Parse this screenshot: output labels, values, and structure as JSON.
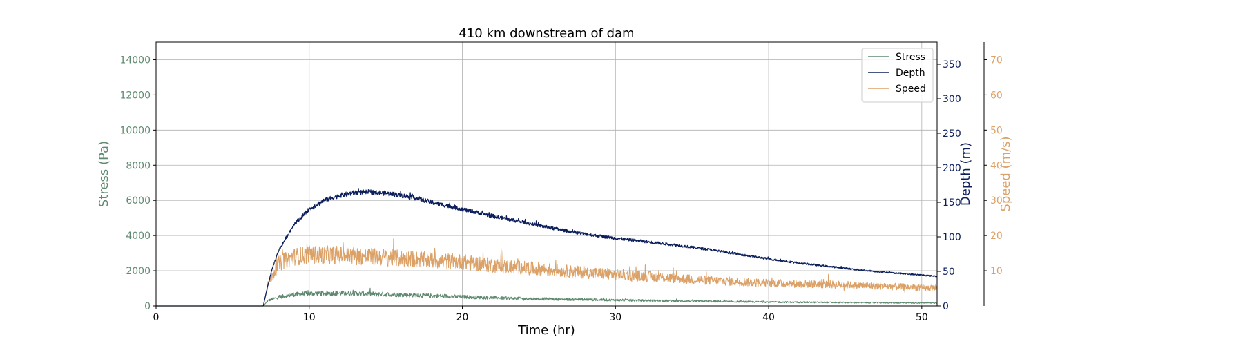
{
  "chart_data": {
    "type": "line",
    "title": "410 km downstream of dam",
    "xlabel": "Time (hr)",
    "xlim": [
      0,
      51
    ],
    "x_ticks": [
      0,
      10,
      20,
      30,
      40,
      50
    ],
    "grid": true,
    "legend_position": "top-right",
    "axes": {
      "stress": {
        "label": "Stress (Pa)",
        "side": "left",
        "color": "#5f8a70",
        "ylim": [
          0,
          15000
        ],
        "ticks": [
          0,
          2000,
          4000,
          6000,
          8000,
          10000,
          12000,
          14000
        ]
      },
      "depth": {
        "label": "Depth (m)",
        "side": "right",
        "color": "#0c1f5c",
        "ylim": [
          0,
          382
        ],
        "ticks": [
          0,
          50,
          100,
          150,
          200,
          250,
          300,
          350
        ]
      },
      "speed": {
        "label": "Speed (m/s)",
        "side": "right-outer",
        "color": "#dba167",
        "ylim": [
          0,
          75
        ],
        "ticks": [
          10,
          20,
          30,
          40,
          50,
          60,
          70
        ]
      }
    },
    "series": [
      {
        "name": "Stress",
        "axis": "stress",
        "color": "#5f8a70",
        "x": [
          0,
          7,
          7.3,
          8,
          9,
          10,
          11,
          12,
          13,
          14,
          15,
          16,
          17,
          18,
          20,
          22,
          25,
          28,
          30,
          35,
          40,
          45,
          51
        ],
        "y": [
          0,
          0,
          300,
          500,
          650,
          700,
          720,
          720,
          700,
          680,
          660,
          640,
          610,
          580,
          520,
          460,
          400,
          360,
          330,
          270,
          220,
          190,
          170
        ],
        "noise": 140
      },
      {
        "name": "Depth",
        "axis": "depth",
        "color": "#0c1f5c",
        "x": [
          0,
          7,
          7.3,
          7.6,
          8,
          9,
          10,
          11,
          12,
          13,
          14,
          15,
          16,
          17,
          18,
          19,
          20,
          22,
          24,
          26,
          28,
          30,
          32,
          34,
          36,
          38,
          40,
          42,
          44,
          46,
          48,
          51
        ],
        "y": [
          0,
          0,
          30,
          55,
          80,
          118,
          140,
          153,
          160,
          164,
          165,
          163,
          160,
          156,
          150,
          145,
          140,
          130,
          121,
          112,
          104,
          98,
          93,
          88,
          82,
          75,
          68,
          62,
          57,
          52,
          48,
          43
        ],
        "noise": 3.5
      },
      {
        "name": "Speed",
        "axis": "speed",
        "color": "#dba167",
        "x": [
          0,
          7,
          7.3,
          8,
          9,
          10,
          12,
          14,
          16,
          18,
          20,
          22,
          25,
          28,
          30,
          35,
          40,
          45,
          51
        ],
        "y": [
          0,
          0,
          6,
          12,
          14,
          14.5,
          14.5,
          14,
          13.5,
          13,
          12.5,
          11.5,
          10.5,
          9.5,
          9,
          7.5,
          6.5,
          6,
          5
        ],
        "noise": 2.6
      }
    ]
  }
}
